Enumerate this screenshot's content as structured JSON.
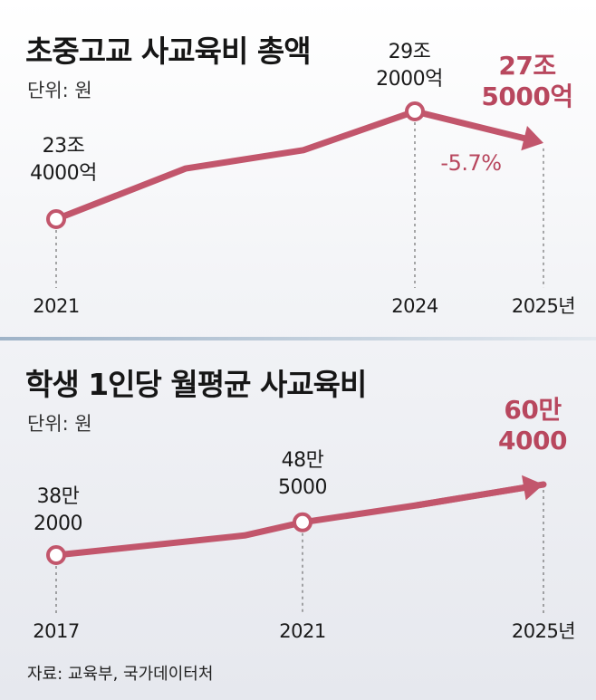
{
  "chart_data": [
    {
      "type": "line",
      "title": "초중고교 사교육비 총액",
      "unit": "단위: 원",
      "categories": [
        "2021",
        "2024",
        "2025년"
      ],
      "series": [
        {
          "values": [
            234000,
            292000,
            275000
          ],
          "labels": [
            "23조\n4000억",
            "29조\n2000억",
            "27조\n5000억"
          ]
        }
      ],
      "annotations": [
        "-5.7%"
      ],
      "highlight_color": "#b8475e",
      "line_color": "#c2566c"
    },
    {
      "type": "line",
      "title": "학생 1인당 월평균 사교육비",
      "unit": "단위: 원",
      "categories": [
        "2017",
        "2021",
        "2025년"
      ],
      "series": [
        {
          "values": [
            382000,
            485000,
            604000
          ],
          "labels": [
            "38만\n2000",
            "48만\n5000",
            "60만\n4000"
          ]
        }
      ],
      "highlight_color": "#b8475e",
      "line_color": "#c2566c"
    }
  ],
  "source": "자료: 교육부, 국가데이터처"
}
